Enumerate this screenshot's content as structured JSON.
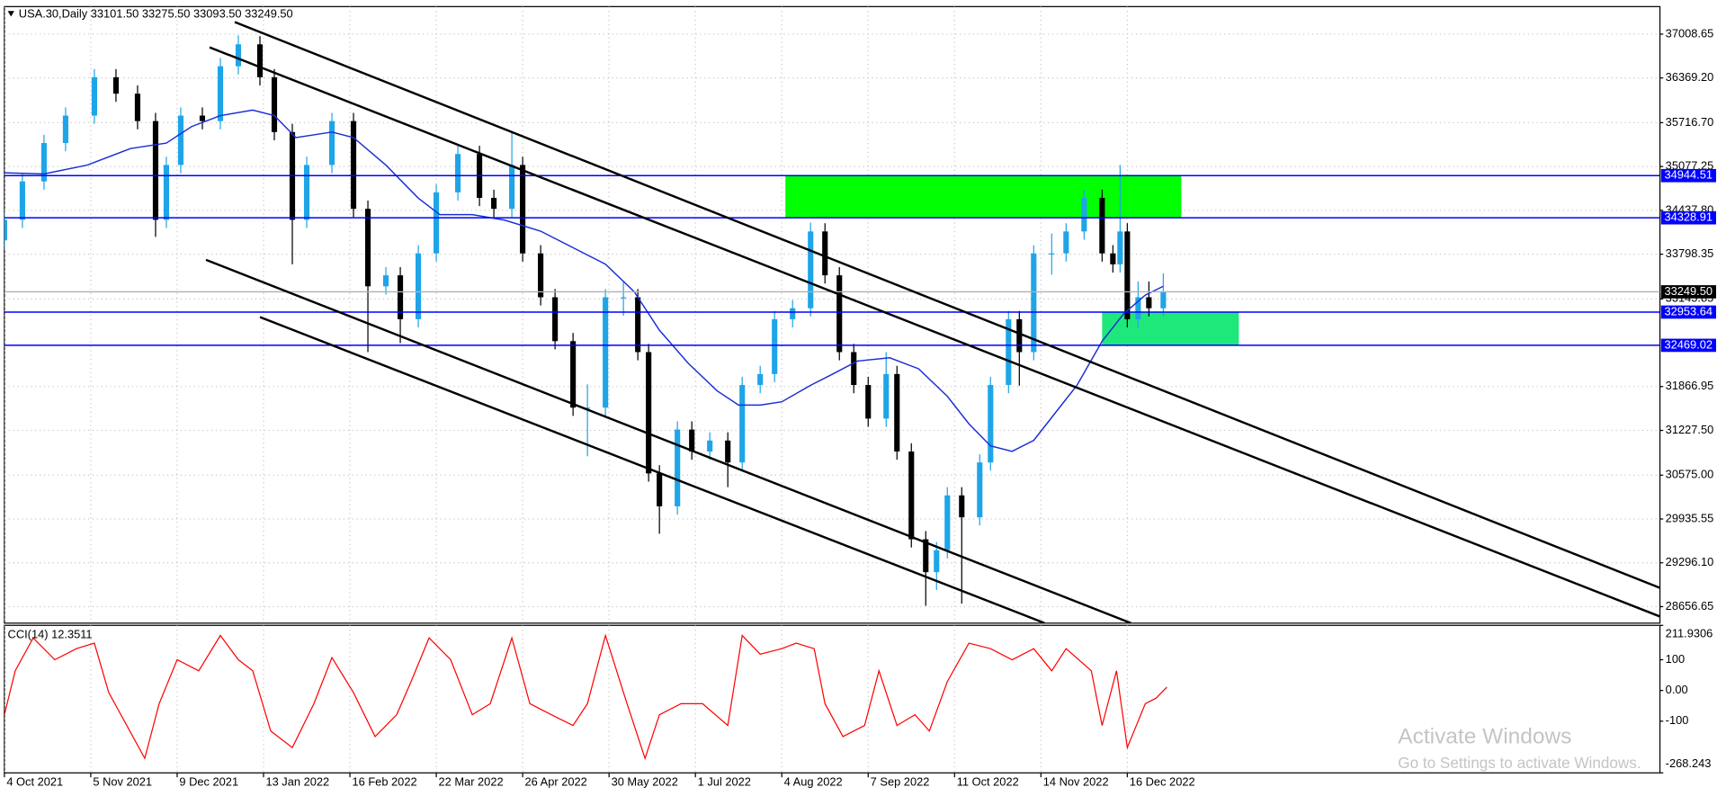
{
  "chart_data": [
    {
      "type": "candlestick",
      "title": "USA.30,Daily 33101.50 33275.50 33093.50 33249.50",
      "up_color": "#1ea5e8",
      "down_color": "#000000",
      "grid": true,
      "xlim": [
        0,
        460
      ],
      "ylim": [
        28416,
        37410
      ],
      "yticks": [
        37008.65,
        {
          "value": 36369.2,
          "label": "36369.20"
        },
        {
          "value": 35716.7,
          "label": "35716.70"
        },
        35077.25,
        {
          "value": 34437.8,
          "label": "34437.80"
        },
        33798.35,
        33145.85,
        31866.95,
        {
          "value": 31227.5,
          "label": "31227.50"
        },
        {
          "value": 30575,
          "label": "30575.00"
        },
        29935.55,
        {
          "value": 29296.1,
          "label": "29296.10"
        },
        28656.65
      ],
      "xticks": [
        {
          "value": 0,
          "label": "4 Oct 2021"
        },
        {
          "value": 24,
          "label": "5 Nov 2021"
        },
        {
          "value": 48,
          "label": "9 Dec 2021"
        },
        {
          "value": 72,
          "label": "13 Jan 2022"
        },
        {
          "value": 96,
          "label": "16 Feb 2022"
        },
        {
          "value": 120,
          "label": "22 Mar 2022"
        },
        {
          "value": 144,
          "label": "26 Apr 2022"
        },
        {
          "value": 168,
          "label": "30 May 2022"
        },
        {
          "value": 192,
          "label": "1 Jul 2022"
        },
        {
          "value": 216,
          "label": "4 Aug 2022"
        },
        {
          "value": 240,
          "label": "7 Sep 2022"
        },
        {
          "value": 264,
          "label": "11 Oct 2022"
        },
        {
          "value": 288,
          "label": "14 Nov 2022"
        },
        {
          "value": 312,
          "label": "16 Dec 2022"
        }
      ],
      "x": [
        0,
        5,
        11,
        17,
        25,
        31,
        37,
        42,
        45,
        49,
        55,
        60,
        65,
        71,
        75,
        80,
        84,
        91,
        97,
        101,
        106,
        110,
        115,
        120,
        126,
        132,
        136,
        141,
        144,
        149,
        153,
        158,
        162,
        167,
        172,
        176,
        179,
        182,
        187,
        191,
        196,
        201,
        205,
        210,
        214,
        219,
        224,
        228,
        232,
        236,
        240,
        245,
        248,
        252,
        256,
        259,
        262,
        266,
        271,
        274,
        279,
        282,
        286,
        291,
        295,
        300,
        305,
        308,
        310,
        312,
        315,
        318,
        322
      ],
      "open": [
        34000,
        34300,
        34860,
        35420,
        35820,
        36380,
        36140,
        35740,
        34300,
        35100,
        35820,
        35740,
        36540,
        36860,
        36380,
        35580,
        34300,
        35100,
        35740,
        34460,
        33330,
        33490,
        32850,
        33810,
        34700,
        35260,
        34620,
        34460,
        35100,
        33810,
        33170,
        32530,
        31560,
        31560,
        33170,
        33170,
        32370,
        30600,
        30120,
        31240,
        30920,
        31080,
        30760,
        31890,
        32050,
        32850,
        33010,
        34130,
        33490,
        32370,
        31890,
        31400,
        32050,
        30920,
        29640,
        29160,
        29480,
        30280,
        29960,
        30760,
        31890,
        32850,
        32370,
        33810,
        33810,
        34130,
        34620,
        33810,
        33650,
        34130,
        32850,
        33170,
        33010
      ],
      "high": [
        34420,
        34980,
        35540,
        35940,
        36500,
        36500,
        36260,
        35860,
        35220,
        35940,
        35940,
        36660,
        36990,
        36980,
        36500,
        35700,
        35220,
        35860,
        35860,
        34580,
        33610,
        33610,
        33930,
        34820,
        35380,
        35380,
        34740,
        35580,
        35220,
        33930,
        33290,
        32650,
        31900,
        33290,
        33400,
        33290,
        32490,
        30720,
        31360,
        31360,
        31200,
        31200,
        32010,
        32170,
        32970,
        33130,
        34260,
        34250,
        33610,
        32490,
        32010,
        32370,
        32170,
        31040,
        29760,
        29600,
        30400,
        30400,
        30880,
        32010,
        32970,
        32970,
        33930,
        34100,
        34250,
        34740,
        34740,
        33930,
        35100,
        34250,
        33400,
        33400,
        33520
      ],
      "low": [
        33880,
        34180,
        34740,
        35300,
        35700,
        36020,
        35620,
        34050,
        34180,
        34980,
        35620,
        35620,
        36420,
        36260,
        35460,
        33650,
        34180,
        34980,
        34340,
        32370,
        33210,
        32500,
        32730,
        33690,
        34580,
        34500,
        34340,
        34340,
        33690,
        33050,
        32410,
        31440,
        30850,
        31440,
        32900,
        32250,
        30480,
        29720,
        30000,
        30800,
        30800,
        30400,
        30640,
        31770,
        31930,
        32730,
        32890,
        33370,
        32250,
        31770,
        31280,
        31280,
        30800,
        29520,
        28670,
        28900,
        29360,
        28700,
        29840,
        30640,
        31770,
        31880,
        32250,
        33500,
        33690,
        34010,
        33690,
        33530,
        33530,
        32730,
        32730,
        32890,
        32890
      ],
      "close": [
        34300,
        34860,
        35420,
        35820,
        36380,
        36140,
        35740,
        34300,
        35100,
        35820,
        35740,
        36540,
        36860,
        36380,
        35580,
        34300,
        35100,
        35740,
        34460,
        33330,
        33490,
        32850,
        33810,
        34700,
        35260,
        34620,
        34460,
        35100,
        33810,
        33170,
        32530,
        31560,
        31560,
        33170,
        33170,
        32370,
        30600,
        30120,
        31240,
        30920,
        31080,
        30760,
        31890,
        32050,
        32850,
        33010,
        34130,
        33490,
        32370,
        31890,
        31400,
        32050,
        30920,
        29640,
        29160,
        29480,
        30280,
        29960,
        30760,
        31890,
        32850,
        32370,
        33810,
        33810,
        34130,
        34620,
        33810,
        33650,
        34130,
        32850,
        33170,
        33010,
        33250
      ],
      "overlays": [
        {
          "color": "#1a2fd6",
          "x": [
            0,
            11,
            23,
            35,
            45,
            52,
            60,
            69,
            75,
            81,
            91,
            97,
            106,
            115,
            121,
            130,
            139,
            149,
            158,
            167,
            175,
            182,
            190,
            198,
            204,
            210,
            216,
            224,
            230,
            237,
            246,
            254,
            262,
            268,
            274,
            280,
            286,
            292,
            298,
            305,
            311,
            317,
            322
          ],
          "values": [
            34985,
            34969,
            35098,
            35339,
            35419,
            35660,
            35820,
            35900,
            35820,
            35499,
            35580,
            35499,
            35098,
            34616,
            34375,
            34375,
            34295,
            34134,
            33893,
            33652,
            33251,
            32689,
            32207,
            31806,
            31597,
            31597,
            31645,
            31886,
            32046,
            32239,
            32287,
            32127,
            31725,
            31323,
            31002,
            30922,
            31082,
            31484,
            31885,
            32528,
            32929,
            33202,
            33331
          ]
        }
      ],
      "zones": [
        {
          "x": [
            217,
            327
          ],
          "y": [
            34328.91,
            34944.51
          ],
          "color": "#00ff00"
        },
        {
          "x": [
            305,
            343
          ],
          "y": [
            32469.02,
            32953.64
          ],
          "color": "#1ee87a"
        }
      ],
      "levels": [
        {
          "value": 34944.51,
          "color": "#0000ff"
        },
        {
          "value": 34328.91,
          "color": "#0000ff"
        },
        {
          "value": 32953.64,
          "color": "#0000ff"
        },
        {
          "value": 32469.02,
          "color": "#0000ff"
        },
        {
          "value": 33249.5,
          "label": "33249.50",
          "color": "#000000"
        }
      ],
      "trendline_color": "#000000",
      "trendlines": [
        {
          "x": [
            64,
            460
          ],
          "y": [
            37185,
            28930
          ]
        },
        {
          "x": [
            57,
            460
          ],
          "y": [
            36816,
            28513
          ]
        },
        {
          "x": [
            56,
            313
          ],
          "y": [
            33716,
            28417
          ]
        },
        {
          "x": [
            71,
            289
          ],
          "y": [
            32881,
            28417
          ]
        }
      ]
    },
    {
      "type": "line",
      "title": "CCI(14) 12.3511",
      "color": "#ff0000",
      "grid": true,
      "xlim": [
        0,
        460
      ],
      "ylim": [
        -268.243,
        211.9306
      ],
      "yticks": [
        211.9306,
        100,
        {
          "value": 0,
          "label": "0.00"
        },
        -100,
        -268.243
      ],
      "x": [
        0,
        3,
        8,
        14,
        20,
        25,
        29,
        34,
        39,
        43,
        48,
        54,
        60,
        65,
        69,
        74,
        80,
        86,
        91,
        97,
        103,
        109,
        113,
        118,
        124,
        130,
        135,
        141,
        146,
        152,
        158,
        162,
        167,
        173,
        178,
        182,
        188,
        194,
        201,
        205,
        210,
        216,
        220,
        225,
        228,
        233,
        239,
        243,
        248,
        253,
        257,
        262,
        268,
        274,
        280,
        286,
        291,
        295,
        302,
        305,
        309,
        312,
        317,
        320,
        323
      ],
      "values": [
        -79,
        64,
        171,
        100,
        136,
        154,
        -7,
        -114,
        -221,
        -43,
        100,
        64,
        179,
        100,
        64,
        -132,
        -186,
        -43,
        107,
        -7,
        -150,
        -79,
        29,
        171,
        100,
        -79,
        -43,
        171,
        -43,
        -79,
        -114,
        -43,
        179,
        -43,
        -221,
        -79,
        -43,
        -43,
        -114,
        179,
        118,
        136,
        154,
        136,
        -43,
        -150,
        -114,
        64,
        -114,
        -79,
        -132,
        29,
        154,
        136,
        100,
        136,
        64,
        136,
        64,
        -114,
        64,
        -186,
        -43,
        -25,
        11
      ]
    }
  ],
  "watermark": {
    "title": "Activate Windows",
    "subtitle": "Go to Settings to activate Windows."
  }
}
